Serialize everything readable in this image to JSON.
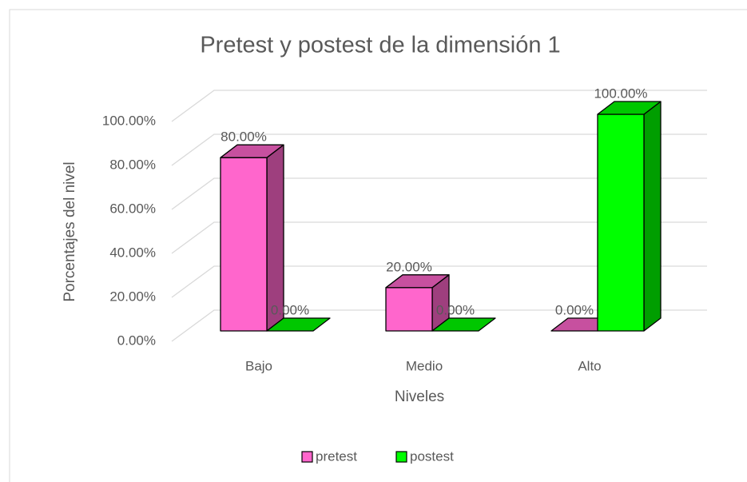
{
  "chart_data": {
    "type": "bar3d",
    "title": "Pretest y postest de la dimensión 1",
    "x_label": "Niveles",
    "y_label": "Porcentajes del nivel",
    "categories": [
      "Bajo",
      "Medio",
      "Alto"
    ],
    "series": [
      {
        "name": "pretest",
        "color": "#ff66cc",
        "values": [
          80,
          20,
          0
        ],
        "value_labels": [
          "80.00%",
          "20.00%",
          "0.00%"
        ]
      },
      {
        "name": "postest",
        "color": "#00ff00",
        "values": [
          0,
          0,
          100
        ],
        "value_labels": [
          "0.00%",
          "0.00%",
          "100.00%"
        ]
      }
    ],
    "ylim": [
      0,
      100
    ],
    "yticks": [
      {
        "value": 0,
        "label": "0.00%"
      },
      {
        "value": 20,
        "label": "20.00%"
      },
      {
        "value": 40,
        "label": "40.00%"
      },
      {
        "value": 60,
        "label": "60.00%"
      },
      {
        "value": 80,
        "label": "80.00%"
      },
      {
        "value": 100,
        "label": "100.00%"
      }
    ],
    "grid": true,
    "legend": "bottom"
  }
}
